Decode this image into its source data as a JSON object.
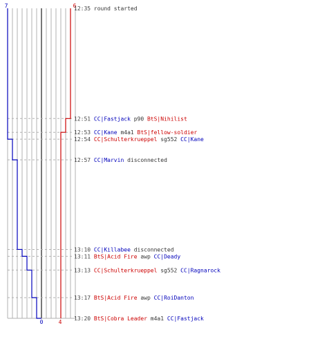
{
  "chart_data": {
    "type": "line",
    "title": "",
    "colors": {
      "blue": "#0000bb",
      "red": "#cc0000",
      "text": "#333333",
      "time": "#444444",
      "grid": "#b0b0b0",
      "center": "#555555"
    },
    "axis": {
      "left_start": "7",
      "right_start": "6",
      "left_end": "0",
      "right_end": "4"
    },
    "series": [
      {
        "name": "",
        "color": "blue",
        "steps": [
          {
            "t": "12:35",
            "v": 7
          },
          {
            "t": "12:54",
            "v": 6
          },
          {
            "t": "12:57",
            "v": 5
          },
          {
            "t": "13:10",
            "v": 4
          },
          {
            "t": "13:11",
            "v": 3
          },
          {
            "t": "13:13",
            "v": 2
          },
          {
            "t": "13:17",
            "v": 1
          },
          {
            "t": "13:20",
            "v": 0
          }
        ]
      },
      {
        "name": "",
        "color": "red",
        "steps": [
          {
            "t": "12:35",
            "v": 6
          },
          {
            "t": "12:51",
            "v": 5
          },
          {
            "t": "12:53",
            "v": 4
          }
        ]
      }
    ],
    "events": [
      {
        "time": "12:35",
        "parts": [
          {
            "text": "round started",
            "color": "text"
          }
        ]
      },
      {
        "time": "12:51",
        "parts": [
          {
            "text": "CC|Fastjack",
            "color": "blue"
          },
          {
            "text": " p90 ",
            "color": "text"
          },
          {
            "text": "BtS|Nihilist",
            "color": "red"
          }
        ]
      },
      {
        "time": "12:53",
        "parts": [
          {
            "text": "CC|Kane",
            "color": "blue"
          },
          {
            "text": " m4a1 ",
            "color": "text"
          },
          {
            "text": "BtS|fellow-soldier",
            "color": "red"
          }
        ]
      },
      {
        "time": "12:54",
        "parts": [
          {
            "text": "CC|Schulterkrueppel",
            "color": "red"
          },
          {
            "text": " sg552 ",
            "color": "text"
          },
          {
            "text": "CC|Kane",
            "color": "blue"
          }
        ]
      },
      {
        "time": "12:57",
        "parts": [
          {
            "text": "CC|Marvin",
            "color": "blue"
          },
          {
            "text": " disconnected",
            "color": "text"
          }
        ]
      },
      {
        "time": "13:10",
        "parts": [
          {
            "text": "CC|Killabee",
            "color": "blue"
          },
          {
            "text": " disconnected",
            "color": "text"
          }
        ]
      },
      {
        "time": "13:11",
        "parts": [
          {
            "text": "BtS|Acid Fire",
            "color": "red"
          },
          {
            "text": " awp ",
            "color": "text"
          },
          {
            "text": "CC|Deady",
            "color": "blue"
          }
        ]
      },
      {
        "time": "13:13",
        "parts": [
          {
            "text": "CC|Schulterkrueppel",
            "color": "red"
          },
          {
            "text": " sg552 ",
            "color": "text"
          },
          {
            "text": "CC|Ragnarock",
            "color": "blue"
          }
        ]
      },
      {
        "time": "13:17",
        "parts": [
          {
            "text": "BtS|Acid Fire",
            "color": "red"
          },
          {
            "text": " awp ",
            "color": "text"
          },
          {
            "text": "CC|RoiDanton",
            "color": "blue"
          }
        ]
      },
      {
        "time": "13:20",
        "parts": [
          {
            "text": "BtS|Cobra Leader",
            "color": "red"
          },
          {
            "text": " m4a1 ",
            "color": "text"
          },
          {
            "text": "CC|Fastjack",
            "color": "blue"
          }
        ]
      }
    ]
  }
}
